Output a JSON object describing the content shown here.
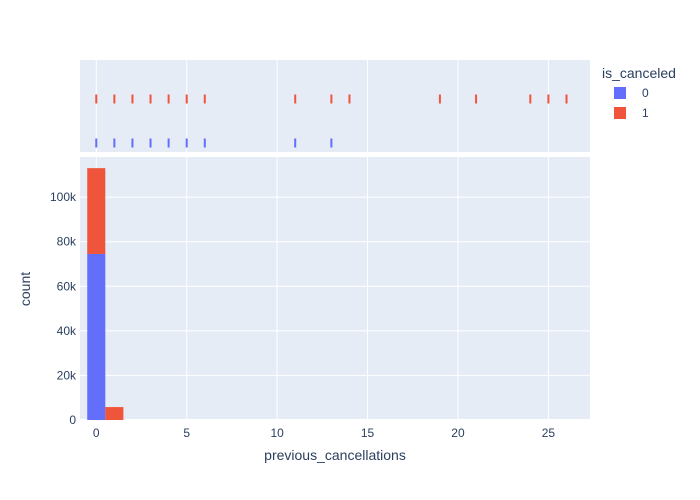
{
  "chart_data": {
    "type": "bar",
    "barmode": "stack",
    "xlabel": "previous_cancellations",
    "ylabel": "count",
    "xlim": [
      -0.9,
      27.3
    ],
    "ylim": [
      0,
      118000
    ],
    "xticks": [
      {
        "value": 0,
        "label": "0"
      },
      {
        "value": 5,
        "label": "5"
      },
      {
        "value": 10,
        "label": "10"
      },
      {
        "value": 15,
        "label": "15"
      },
      {
        "value": 20,
        "label": "20"
      },
      {
        "value": 25,
        "label": "25"
      }
    ],
    "yticks": [
      {
        "value": 0,
        "label": "0"
      },
      {
        "value": 20000,
        "label": "20k"
      },
      {
        "value": 40000,
        "label": "40k"
      },
      {
        "value": 60000,
        "label": "60k"
      },
      {
        "value": 80000,
        "label": "80k"
      },
      {
        "value": 100000,
        "label": "100k"
      }
    ],
    "bins": [
      {
        "x0": -0.5,
        "x1": 0.5
      },
      {
        "x0": 0.5,
        "x1": 1.5
      }
    ],
    "series": [
      {
        "name": "0",
        "color": "#636efa",
        "values": [
          74500,
          0
        ]
      },
      {
        "name": "1",
        "color": "#ef553b",
        "values": [
          38500,
          5800
        ]
      }
    ],
    "marginal": {
      "type": "rug",
      "series": [
        {
          "name": "1",
          "color": "#ef553b",
          "x": [
            0,
            1,
            2,
            3,
            4,
            5,
            6,
            11,
            13,
            14,
            19,
            21,
            24,
            25,
            26
          ]
        },
        {
          "name": "0",
          "color": "#636efa",
          "x": [
            0,
            1,
            2,
            3,
            4,
            5,
            6,
            11,
            13
          ]
        }
      ]
    },
    "legend": {
      "title": "is_canceled",
      "placement": "top-right",
      "items": [
        {
          "label": "0",
          "color": "#636efa"
        },
        {
          "label": "1",
          "color": "#ef553b"
        }
      ]
    },
    "grid": true,
    "plot_bgcolor": "#e5ecf6"
  }
}
